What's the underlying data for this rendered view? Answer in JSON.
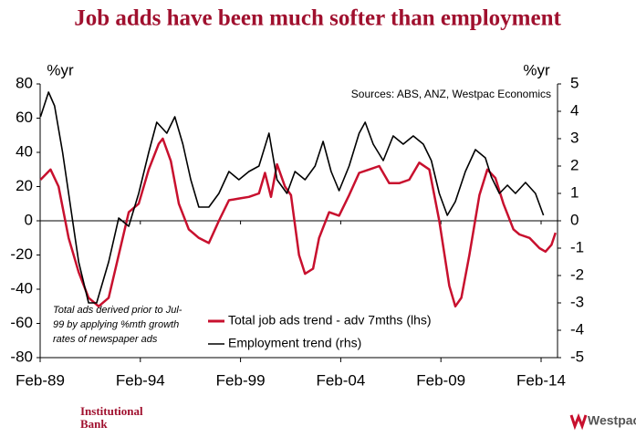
{
  "chart_data": {
    "type": "line",
    "title": "Job adds have been much softer than employment",
    "ylabel": "%yr",
    "y2label": "%yr",
    "annotation": "Sources: ABS, ANZ, Westpac Economics",
    "note": [
      "Total ads derived prior to Jul-",
      "99 by applying %mth  growth",
      "rates of newspaper ads"
    ],
    "footer": {
      "left": [
        "Institutional",
        "Bank"
      ],
      "right": "Westpac"
    },
    "xlim": [
      1989.08,
      2014.9
    ],
    "xticks": [
      {
        "value": 1989.08,
        "label": "Feb-89"
      },
      {
        "value": 1994.08,
        "label": "Feb-94"
      },
      {
        "value": 1999.08,
        "label": "Feb-99"
      },
      {
        "value": 2004.08,
        "label": "Feb-04"
      },
      {
        "value": 2009.08,
        "label": "Feb-09"
      },
      {
        "value": 2014.08,
        "label": "Feb-14"
      }
    ],
    "ylim": [
      -80,
      80
    ],
    "yticks": [
      -80,
      -60,
      -40,
      -20,
      0,
      20,
      40,
      60,
      80
    ],
    "y2lim": [
      -5,
      5
    ],
    "y2ticks": [
      -5,
      -4,
      -3,
      -2,
      -1,
      0,
      1,
      2,
      3,
      4,
      5
    ],
    "series": [
      {
        "name": "Total job ads trend - adv 7mths (lhs)",
        "color": "#c8102e",
        "x": [
          1989.1,
          1989.6,
          1990.0,
          1990.5,
          1991.0,
          1991.5,
          1992.0,
          1992.5,
          1993.0,
          1993.5,
          1994.0,
          1994.5,
          1995.0,
          1995.2,
          1995.6,
          1996.0,
          1996.5,
          1997.0,
          1997.5,
          1998.0,
          1998.5,
          1999.0,
          1999.5,
          2000.0,
          2000.3,
          2000.6,
          2000.9,
          2001.3,
          2001.6,
          2002.0,
          2002.3,
          2002.7,
          2003.0,
          2003.5,
          2004.0,
          2004.5,
          2005.0,
          2005.5,
          2006.0,
          2006.5,
          2007.0,
          2007.5,
          2008.0,
          2008.5,
          2009.0,
          2009.5,
          2009.8,
          2010.1,
          2010.5,
          2011.0,
          2011.4,
          2011.8,
          2012.2,
          2012.7,
          2013.0,
          2013.5,
          2014.0,
          2014.3,
          2014.6,
          2014.8
        ],
        "values": [
          24,
          30,
          20,
          -10,
          -30,
          -45,
          -50,
          -45,
          -20,
          5,
          10,
          30,
          45,
          48,
          35,
          10,
          -5,
          -10,
          -13,
          0,
          12,
          13,
          14,
          16,
          28,
          14,
          33,
          20,
          15,
          -20,
          -31,
          -28,
          -10,
          5,
          3,
          15,
          28,
          30,
          32,
          22,
          22,
          24,
          34,
          30,
          0,
          -38,
          -50,
          -45,
          -20,
          15,
          30,
          25,
          10,
          -5,
          -8,
          -10,
          -16,
          -18,
          -14,
          -7
        ]
      },
      {
        "name": "Employment trend (rhs)",
        "color": "#000000",
        "axis": "y2",
        "x": [
          1989.1,
          1989.5,
          1989.8,
          1990.2,
          1990.6,
          1991.0,
          1991.5,
          1991.9,
          1992.5,
          1993.0,
          1993.5,
          1994.0,
          1994.5,
          1994.9,
          1995.4,
          1995.8,
          1996.2,
          1996.6,
          1997.0,
          1997.5,
          1998.0,
          1998.5,
          1999.0,
          1999.5,
          2000.0,
          2000.5,
          2000.9,
          2001.4,
          2001.8,
          2002.3,
          2002.8,
          2003.2,
          2003.6,
          2004.0,
          2004.5,
          2005.0,
          2005.3,
          2005.7,
          2006.2,
          2006.7,
          2007.2,
          2007.7,
          2008.2,
          2008.6,
          2009.0,
          2009.4,
          2009.8,
          2010.3,
          2010.8,
          2011.3,
          2011.6,
          2012.0,
          2012.4,
          2012.8,
          2013.3,
          2013.8,
          2014.2
        ],
        "values": [
          3.8,
          4.7,
          4.2,
          2.5,
          0.5,
          -1.5,
          -3.0,
          -3.0,
          -1.5,
          0.1,
          -0.2,
          1.0,
          2.5,
          3.6,
          3.2,
          3.8,
          2.8,
          1.5,
          0.5,
          0.5,
          1.0,
          1.8,
          1.5,
          1.8,
          2.0,
          3.2,
          1.5,
          1.0,
          1.8,
          1.5,
          2.0,
          2.9,
          1.8,
          1.1,
          2.0,
          3.2,
          3.6,
          2.8,
          2.2,
          3.1,
          2.8,
          3.1,
          2.8,
          2.2,
          1.0,
          0.2,
          0.7,
          1.8,
          2.6,
          2.3,
          1.6,
          1.0,
          1.3,
          1.0,
          1.4,
          1.0,
          0.2
        ]
      }
    ]
  }
}
